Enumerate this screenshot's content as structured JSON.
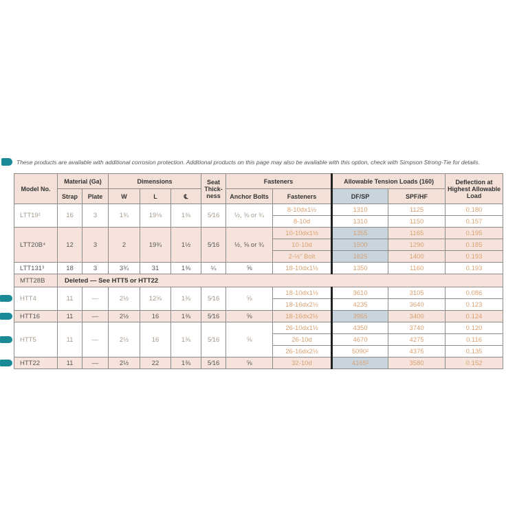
{
  "note": {
    "icon": "corrosion-protection-icon",
    "text": "These products are available with additional corrosion protection. Additional products on this page may also be available with this option, check with Simpson Strong-Tie for details."
  },
  "colors": {
    "header": "#f3e1d8",
    "dfsp": "#c9d5de",
    "accent": "#1a8a96",
    "orange_text": "#d9a070"
  },
  "headers": {
    "model": "Model No.",
    "material": "Material (Ga)",
    "strap": "Strap",
    "plate": "Plate",
    "dimensions": "Dimensions",
    "w": "W",
    "l": "L",
    "cl": "℄",
    "seat": "Seat Thick-ness",
    "fasteners_group": "Fasteners",
    "anchor": "Anchor Bolts",
    "fasteners": "Fasteners",
    "loads": "Allowable Tension Loads (160)",
    "dfsp": "DF/SP",
    "spfhf": "SPF/HF",
    "deflection": "Deflection at Highest Allowable Load"
  },
  "groups": [
    {
      "model": "LTT19¹",
      "strap": "16",
      "plate": "3",
      "w": "1¾",
      "l": "19⅛",
      "cl": "1⅜",
      "seat": "5⁄16",
      "anchor": "½, ⅝ or ¾",
      "tab": false,
      "shade": false,
      "blue": false,
      "loads": [
        {
          "fasteners": "8-10dx1½",
          "dfsp": "1310",
          "spfhf": "1125",
          "deflection": "0.180"
        },
        {
          "fasteners": "8-10d",
          "dfsp": "1310",
          "spfhf": "1150",
          "deflection": "0.157"
        }
      ]
    },
    {
      "model": "LTT20B⁴",
      "strap": "12",
      "plate": "3",
      "w": "2",
      "l": "19¾",
      "cl": "1½",
      "seat": "5⁄16",
      "anchor": "½, ⅝ or ¾",
      "tab": false,
      "shade": true,
      "blue": true,
      "loads": [
        {
          "fasteners": "10-10dx1½",
          "dfsp": "1355",
          "spfhf": "1165",
          "deflection": "0.195"
        },
        {
          "fasteners": "10-10d",
          "dfsp": "1500",
          "spfhf": "1290",
          "deflection": "0.185"
        },
        {
          "fasteners": "2-½\" Bolt",
          "dfsp": "1625",
          "spfhf": "1400",
          "deflection": "0.193"
        }
      ]
    },
    {
      "model": "LTT131³",
      "strap": "18",
      "plate": "3",
      "w": "3¾",
      "l": "31",
      "cl": "1⅜",
      "seat": "¼",
      "anchor": "⅝",
      "tab": false,
      "shade": false,
      "blue": false,
      "loads": [
        {
          "fasteners": "18-10dx1½",
          "dfsp": "1350",
          "spfhf": "1160",
          "deflection": "0.193"
        }
      ]
    },
    {
      "model": "MTT28B",
      "deleted": "Deleted — See HTT5 or HTT22"
    },
    {
      "model": "HTT4",
      "strap": "11",
      "plate": "—",
      "w": "2½",
      "l": "12⅝",
      "cl": "1⅜",
      "seat": "5⁄16",
      "anchor": "⅝",
      "tab": true,
      "shade": false,
      "blue": false,
      "loads": [
        {
          "fasteners": "18-10dx1½",
          "dfsp": "3610",
          "spfhf": "3105",
          "deflection": "0.086"
        },
        {
          "fasteners": "18-16dx2½",
          "dfsp": "4235",
          "spfhf": "3640",
          "deflection": "0.123"
        }
      ]
    },
    {
      "model": "HTT16",
      "strap": "11",
      "plate": "—",
      "w": "2½",
      "l": "16",
      "cl": "1⅜",
      "seat": "5⁄16",
      "anchor": "⅝",
      "tab": true,
      "shade": true,
      "blue": true,
      "loads": [
        {
          "fasteners": "18-16dx2½",
          "dfsp": "3955",
          "spfhf": "3400",
          "deflection": "0.124"
        }
      ]
    },
    {
      "model": "HTT5",
      "strap": "11",
      "plate": "—",
      "w": "2½",
      "l": "16",
      "cl": "1⅜",
      "seat": "5⁄16",
      "anchor": "⅝",
      "tab": true,
      "shade": false,
      "blue": false,
      "loads": [
        {
          "fasteners": "26-10dx1½",
          "dfsp": "4350",
          "spfhf": "3740",
          "deflection": "0.120"
        },
        {
          "fasteners": "26-10d",
          "dfsp": "4670",
          "spfhf": "4275",
          "deflection": "0.116"
        },
        {
          "fasteners": "26-16dx2½",
          "dfsp": "5090²",
          "spfhf": "4375",
          "deflection": "0.135"
        }
      ]
    },
    {
      "model": "HTT22",
      "strap": "11",
      "plate": "—",
      "w": "2½",
      "l": "22",
      "cl": "1⅜",
      "seat": "5⁄16",
      "anchor": "⅝",
      "tab": true,
      "shade": true,
      "blue": true,
      "loads": [
        {
          "fasteners": "32-10d",
          "dfsp": "4165²",
          "spfhf": "3580",
          "deflection": "0.152"
        }
      ]
    }
  ]
}
